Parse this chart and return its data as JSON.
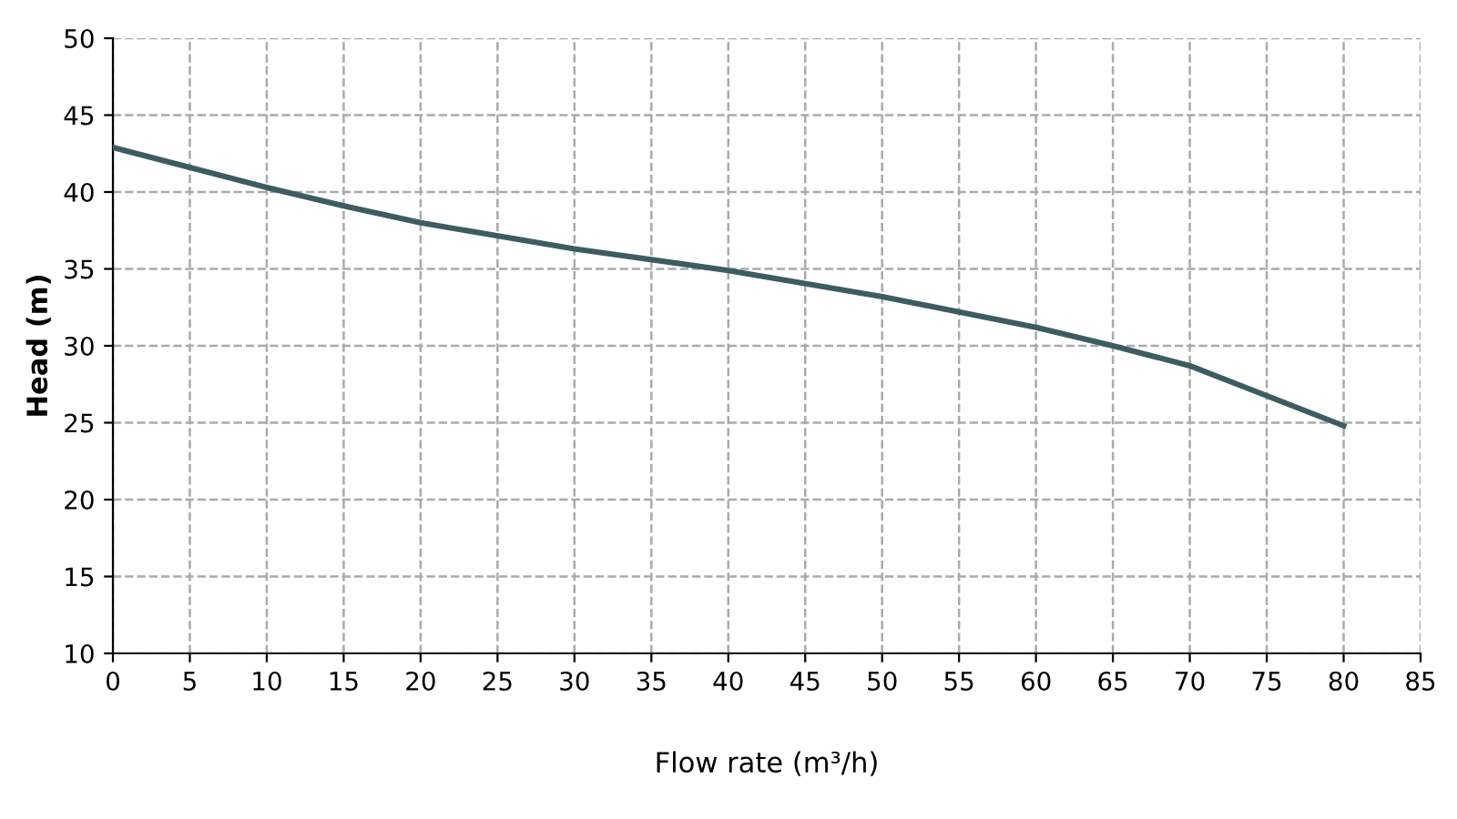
{
  "chart_data": {
    "type": "line",
    "xlabel": "Flow rate (m³/h)",
    "ylabel": "Head (m)",
    "x": [
      0,
      5,
      10,
      15,
      20,
      30,
      40,
      50,
      60,
      65,
      70,
      80
    ],
    "series": [
      {
        "color": "#3d5c61",
        "values": [
          42.9,
          41.6,
          40.3,
          39.1,
          38.0,
          36.3,
          34.9,
          33.2,
          31.2,
          30.0,
          28.7,
          24.8
        ]
      }
    ],
    "xlim": [
      0,
      85
    ],
    "xticks": [
      0,
      5,
      10,
      15,
      20,
      25,
      30,
      35,
      40,
      45,
      50,
      55,
      60,
      65,
      70,
      75,
      80,
      85
    ],
    "ylim": [
      10,
      50
    ],
    "yticks": [
      10,
      15,
      20,
      25,
      30,
      35,
      40,
      45,
      50
    ],
    "grid": true,
    "line_style": "solid",
    "marker": "none"
  }
}
